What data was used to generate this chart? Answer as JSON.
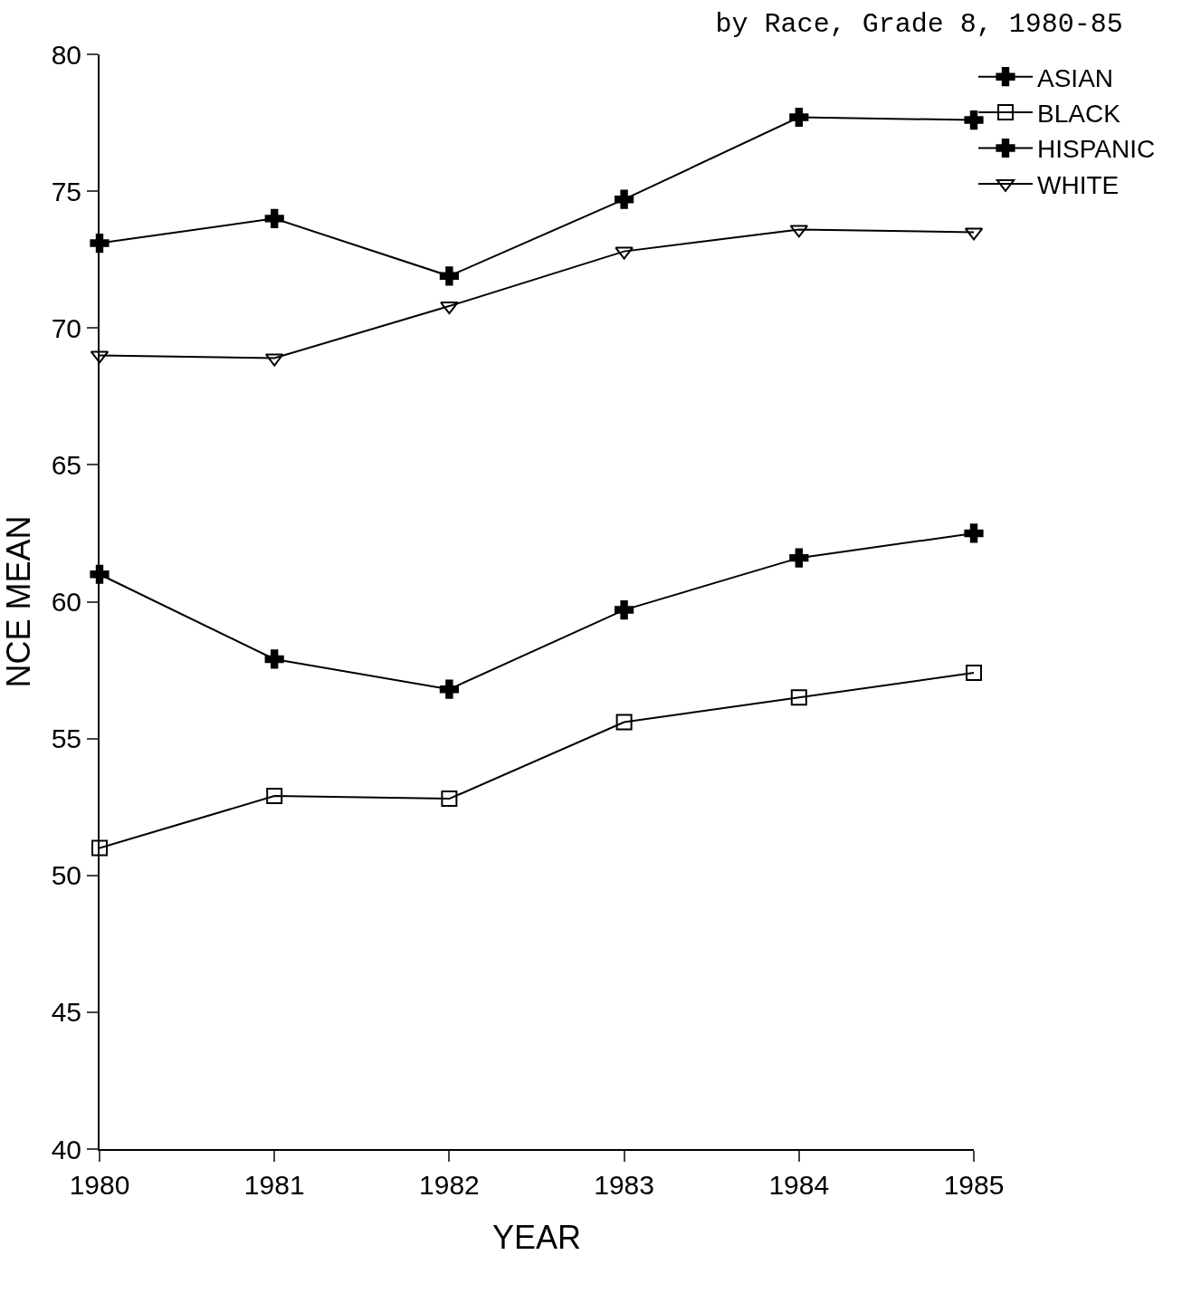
{
  "chart_data": {
    "type": "line",
    "title": "by Race, Grade 8, 1980-85",
    "xlabel": "YEAR",
    "ylabel": "NCE MEAN",
    "x": [
      1980,
      1981,
      1982,
      1983,
      1984,
      1985
    ],
    "xlim": [
      1980,
      1985
    ],
    "xticks": [
      1980,
      1981,
      1982,
      1983,
      1984,
      1985
    ],
    "ylim": [
      40,
      80
    ],
    "yticks": [
      40,
      45,
      50,
      55,
      60,
      65,
      70,
      75,
      80
    ],
    "grid": false,
    "legend": "top right",
    "line_style": "solid",
    "series": [
      {
        "name": "ASIAN",
        "color": "#000000",
        "marker": "cross",
        "values": [
          73.1,
          74.0,
          71.9,
          74.7,
          77.7,
          77.6
        ]
      },
      {
        "name": "BLACK",
        "color": "#000000",
        "marker": "square",
        "values": [
          51.0,
          52.9,
          52.8,
          55.6,
          56.5,
          57.4
        ]
      },
      {
        "name": "HISPANIC",
        "color": "#000000",
        "marker": "cross",
        "values": [
          61.0,
          57.9,
          56.8,
          59.7,
          61.6,
          62.5
        ]
      },
      {
        "name": "WHITE",
        "color": "#000000",
        "marker": "triangle",
        "values": [
          69.0,
          68.9,
          70.8,
          72.8,
          73.6,
          73.5
        ]
      }
    ]
  }
}
